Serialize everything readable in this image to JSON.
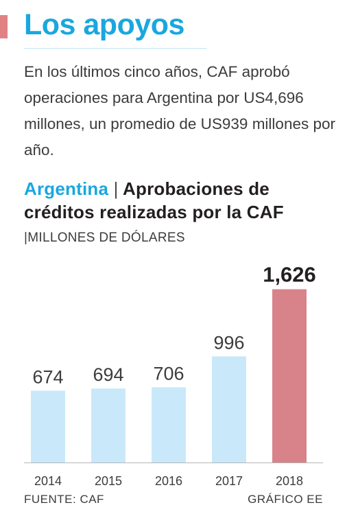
{
  "header": {
    "title": "Los apoyos",
    "accent_color": "#e08284",
    "title_color": "#1aa7df"
  },
  "intro": {
    "text": "En los últimos cinco años, CAF aprobó operaciones para Argentina por US4,696 millones, un promedio de US939 millones por año."
  },
  "chart_header": {
    "country": "Argentina",
    "separator": "|",
    "title_rest": "Aprobaciones de créditos realizadas por la CAF",
    "unit_separator": "|",
    "unit": "MILLONES DE DÓLARES"
  },
  "chart_data": {
    "type": "bar",
    "categories": [
      "2014",
      "2015",
      "2016",
      "2017",
      "2018"
    ],
    "values": [
      674,
      694,
      706,
      996,
      1626
    ],
    "labels": [
      "674",
      "694",
      "706",
      "996",
      "1,626"
    ],
    "ylim": [
      0,
      1700
    ],
    "grid": false,
    "colors": {
      "default": "#c9e9fa",
      "highlight": "#d8838a",
      "highlight_index": 4,
      "axis": "#b5b5b5",
      "label": "#3c3b3d",
      "highlight_label": "#231f20"
    }
  },
  "footer": {
    "source": "FUENTE: CAF",
    "credit": "GRÁFICO EE"
  }
}
